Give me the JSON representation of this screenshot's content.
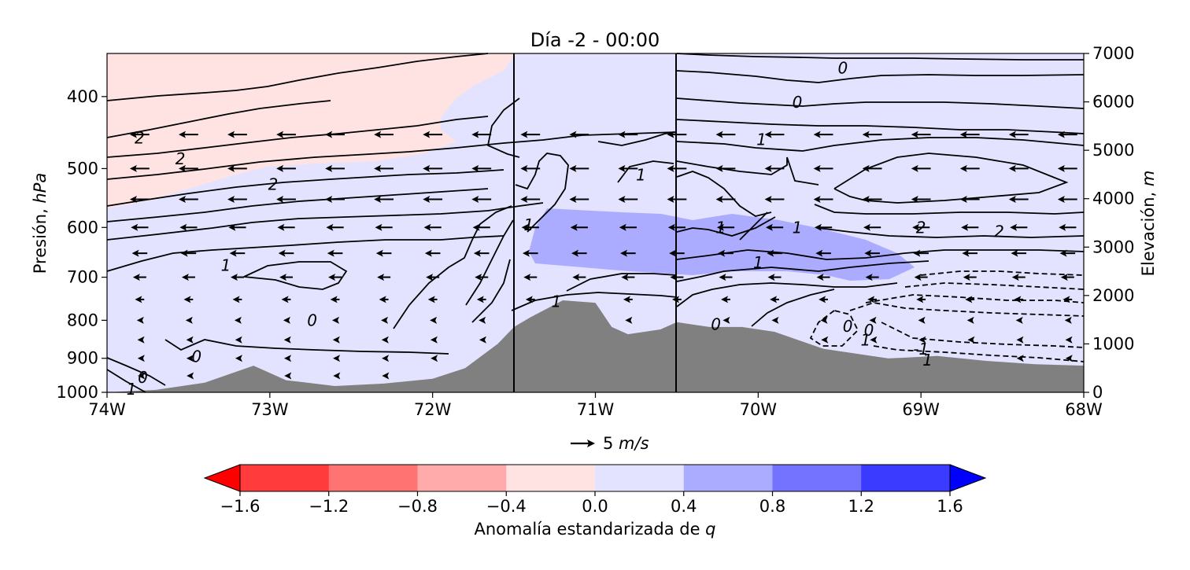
{
  "chart_data": {
    "type": "heatmap",
    "title": "Día -2 - 00:00",
    "xlabel": "",
    "ylabel": "Presión, hPa",
    "ylabel_parts": {
      "text": "Presión, ",
      "unit": "hPa"
    },
    "y2label_parts": {
      "text": "Elevación, ",
      "unit": "m"
    },
    "xlim": [
      -74,
      -68
    ],
    "ylim": [
      1000,
      350
    ],
    "y_scale": "log",
    "x_ticks": [
      {
        "value": -74,
        "label": "74W"
      },
      {
        "value": -73,
        "label": "73W"
      },
      {
        "value": -72,
        "label": "72W"
      },
      {
        "value": -71,
        "label": "71W"
      },
      {
        "value": -70,
        "label": "70W"
      },
      {
        "value": -69,
        "label": "69W"
      },
      {
        "value": -68,
        "label": "68W"
      }
    ],
    "y_ticks": [
      {
        "value": 400,
        "label": "400"
      },
      {
        "value": 500,
        "label": "500"
      },
      {
        "value": 600,
        "label": "600"
      },
      {
        "value": 700,
        "label": "700"
      },
      {
        "value": 800,
        "label": "800"
      },
      {
        "value": 900,
        "label": "900"
      },
      {
        "value": 1000,
        "label": "1000"
      }
    ],
    "y2_ticks": [
      {
        "value": 7000,
        "label": "7000"
      },
      {
        "value": 6000,
        "label": "6000"
      },
      {
        "value": 5000,
        "label": "5000"
      },
      {
        "value": 4000,
        "label": "4000"
      },
      {
        "value": 3000,
        "label": "3000"
      },
      {
        "value": 2000,
        "label": "2000"
      },
      {
        "value": 1000,
        "label": "1000"
      },
      {
        "value": 0,
        "label": "0"
      }
    ],
    "y2lim": [
      0,
      7000
    ],
    "vertical_lines": [
      -71.5,
      -70.5
    ],
    "colorbar": {
      "label_parts": {
        "text": "Anomalía estandarizada de ",
        "unit": "q"
      },
      "boundaries": [
        -1.6,
        -1.2,
        -0.8,
        -0.4,
        0.0,
        0.4,
        0.8,
        1.2,
        1.6
      ],
      "colors": [
        "#ff3b3b",
        "#ff7373",
        "#ffabab",
        "#ffe3e3",
        "#e3e3ff",
        "#ababff",
        "#7373ff",
        "#3b3bff"
      ],
      "extend_low_color": "#ff0000",
      "extend_high_color": "#0000ff",
      "tick_labels": [
        "−1.6",
        "−1.2",
        "−0.8",
        "−0.4",
        "0.0",
        "0.4",
        "0.8",
        "1.2",
        "1.6"
      ]
    },
    "anomaly_regions": [
      {
        "class": "-0.4 to 0.0",
        "color": "#ffe3e3",
        "description": "upper-left region",
        "x_range": [
          -74,
          -71.8
        ],
        "p_range": [
          640,
          350
        ]
      },
      {
        "class": "0.4 to 0.8",
        "color": "#ababff",
        "description": "mid-level moist band",
        "x_range": [
          -71.4,
          -69.0
        ],
        "p_range": [
          810,
          650
        ]
      }
    ],
    "contour_labels": [
      {
        "x": -73.8,
        "p": 455,
        "label": "2"
      },
      {
        "x": -73.55,
        "p": 485,
        "label": "2"
      },
      {
        "x": -72.98,
        "p": 525,
        "label": "2"
      },
      {
        "x": -73.27,
        "p": 675,
        "label": "1"
      },
      {
        "x": -72.74,
        "p": 800,
        "label": "0"
      },
      {
        "x": -73.45,
        "p": 895,
        "label": "0"
      },
      {
        "x": -73.78,
        "p": 955,
        "label": "0"
      },
      {
        "x": -73.85,
        "p": 990,
        "label": "1"
      },
      {
        "x": -71.41,
        "p": 595,
        "label": "1"
      },
      {
        "x": -70.72,
        "p": 510,
        "label": "1"
      },
      {
        "x": -70.23,
        "p": 600,
        "label": "1"
      },
      {
        "x": -69.76,
        "p": 600,
        "label": "1"
      },
      {
        "x": -69.98,
        "p": 457,
        "label": "1"
      },
      {
        "x": -69.76,
        "p": 407,
        "label": "0"
      },
      {
        "x": -69.48,
        "p": 366,
        "label": "0"
      },
      {
        "x": -70.0,
        "p": 669,
        "label": "1"
      },
      {
        "x": -71.24,
        "p": 755,
        "label": "1"
      },
      {
        "x": -70.26,
        "p": 810,
        "label": "0"
      },
      {
        "x": -69.45,
        "p": 815,
        "label": "0"
      },
      {
        "x": -69.32,
        "p": 825,
        "label": "0"
      },
      {
        "x": -69.34,
        "p": 850,
        "label": "1"
      },
      {
        "x": -69.0,
        "p": 875,
        "label": "-1"
      },
      {
        "x": -68.96,
        "p": 905,
        "label": "1"
      },
      {
        "x": -69.0,
        "p": 600,
        "label": "2"
      },
      {
        "x": -68.52,
        "p": 608,
        "label": "2"
      }
    ],
    "wind_rows_hpa": [
      450,
      500,
      550,
      600,
      650,
      700,
      750,
      800,
      850,
      900,
      950
    ],
    "wind_columns_lon": [
      -73.8,
      -73.5,
      -73.2,
      -72.9,
      -72.6,
      -72.3,
      -72.0,
      -71.7,
      -71.4,
      -71.1,
      -70.8,
      -70.5,
      -70.2,
      -69.9,
      -69.6,
      -69.3,
      -69.0,
      -68.7,
      -68.4,
      -68.1
    ],
    "wind_u_by_row": [
      -4,
      -4,
      -4,
      -3.5,
      -3,
      -2.5,
      -1.5,
      -0.6,
      -0.3,
      -0.2,
      -0.1
    ],
    "wind_ref": {
      "speed": 5,
      "label_value": "5 ",
      "label_unit": "m/s"
    },
    "terrain_elevation_m": [
      [
        -74.0,
        0
      ],
      [
        -73.7,
        50
      ],
      [
        -73.4,
        200
      ],
      [
        -73.1,
        550
      ],
      [
        -72.9,
        250
      ],
      [
        -72.6,
        130
      ],
      [
        -72.3,
        180
      ],
      [
        -72.0,
        280
      ],
      [
        -71.8,
        500
      ],
      [
        -71.6,
        1000
      ],
      [
        -71.5,
        1350
      ],
      [
        -71.4,
        1550
      ],
      [
        -71.2,
        1900
      ],
      [
        -71.0,
        1850
      ],
      [
        -70.9,
        1350
      ],
      [
        -70.8,
        1200
      ],
      [
        -70.6,
        1300
      ],
      [
        -70.5,
        1450
      ],
      [
        -70.3,
        1350
      ],
      [
        -70.1,
        1350
      ],
      [
        -69.9,
        1250
      ],
      [
        -69.6,
        900
      ],
      [
        -69.4,
        800
      ],
      [
        -69.2,
        700
      ],
      [
        -68.9,
        750
      ],
      [
        -68.6,
        650
      ],
      [
        -68.3,
        580
      ],
      [
        -68.0,
        550
      ]
    ],
    "legend_position": "none",
    "grid": false
  }
}
